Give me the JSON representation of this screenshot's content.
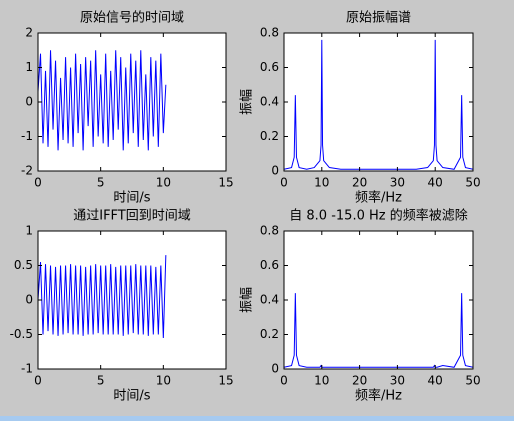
{
  "chart_data": [
    {
      "type": "line",
      "title": "原始信号的时间域",
      "xlabel": "时间/s",
      "x": [
        0,
        0.2,
        0.4,
        0.6,
        0.8,
        1,
        1.2,
        1.4,
        1.6,
        1.8,
        2,
        2.2,
        2.4,
        2.6,
        2.8,
        3,
        3.2,
        3.4,
        3.6,
        3.8,
        4,
        4.2,
        4.4,
        4.6,
        4.8,
        5,
        5.2,
        5.4,
        5.6,
        5.8,
        6,
        6.2,
        6.4,
        6.6,
        6.8,
        7,
        7.2,
        7.4,
        7.6,
        7.8,
        8,
        8.2,
        8.4,
        8.6,
        8.8,
        9,
        9.2,
        9.4,
        9.6,
        9.8,
        10,
        10.2
      ],
      "series": [
        {
          "color": "#0000ff",
          "values": [
            0.3,
            1.4,
            -1.2,
            0.9,
            -1.3,
            1.5,
            -0.8,
            1.2,
            -1.4,
            0.7,
            -1.1,
            1.3,
            -1.2,
            1.0,
            -1.3,
            1.4,
            -0.9,
            1.1,
            -1.4,
            1.3,
            -0.7,
            1.2,
            -1.3,
            1.5,
            -1.0,
            0.8,
            -1.2,
            1.4,
            -1.3,
            0.9,
            -1.1,
            1.5,
            -0.8,
            1.3,
            -1.4,
            1.0,
            -1.2,
            1.4,
            -0.9,
            1.2,
            -1.3,
            1.5,
            -1.1,
            0.8,
            -1.4,
            1.3,
            -1.0,
            1.2,
            -1.3,
            1.4,
            -0.9,
            0.5
          ]
        }
      ],
      "xlim": [
        0,
        15
      ],
      "ylim": [
        -2,
        2
      ],
      "xticks": [
        0,
        5,
        10,
        15
      ],
      "yticks": [
        -2,
        -1,
        0,
        1,
        2
      ]
    },
    {
      "type": "line",
      "title": "原始振幅谱",
      "xlabel": "频率/Hz",
      "ylabel": "振幅",
      "x": [
        0,
        2,
        2.7,
        3,
        3.3,
        4,
        6,
        8,
        9.5,
        9.8,
        10,
        10.2,
        10.5,
        12,
        15,
        20,
        25,
        30,
        35,
        38,
        39.5,
        39.8,
        40,
        40.2,
        40.5,
        42,
        45,
        46.7,
        47,
        47.3,
        48,
        50
      ],
      "series": [
        {
          "color": "#0000ff",
          "values": [
            0.01,
            0.02,
            0.08,
            0.44,
            0.08,
            0.02,
            0.01,
            0.02,
            0.06,
            0.15,
            0.76,
            0.15,
            0.06,
            0.02,
            0.01,
            0.01,
            0.01,
            0.01,
            0.01,
            0.02,
            0.06,
            0.15,
            0.76,
            0.15,
            0.06,
            0.02,
            0.01,
            0.08,
            0.44,
            0.08,
            0.02,
            0.01
          ]
        }
      ],
      "xlim": [
        0,
        50
      ],
      "ylim": [
        0,
        0.8
      ],
      "xticks": [
        0,
        10,
        20,
        30,
        40,
        50
      ],
      "yticks": [
        0,
        0.2,
        0.4,
        0.6,
        0.8
      ]
    },
    {
      "type": "line",
      "title": "通过IFFT回到时间域",
      "xlabel": "时间/s",
      "x": [
        0,
        0.2,
        0.4,
        0.6,
        0.8,
        1,
        1.2,
        1.4,
        1.6,
        1.8,
        2,
        2.2,
        2.4,
        2.6,
        2.8,
        3,
        3.2,
        3.4,
        3.6,
        3.8,
        4,
        4.2,
        4.4,
        4.6,
        4.8,
        5,
        5.2,
        5.4,
        5.6,
        5.8,
        6,
        6.2,
        6.4,
        6.6,
        6.8,
        7,
        7.2,
        7.4,
        7.6,
        7.8,
        8,
        8.2,
        8.4,
        8.6,
        8.8,
        9,
        9.2,
        9.4,
        9.6,
        9.8,
        10,
        10.2
      ],
      "series": [
        {
          "color": "#0000ff",
          "values": [
            0,
            0.55,
            -0.5,
            0.52,
            -0.45,
            0.5,
            -0.5,
            0.48,
            -0.52,
            0.5,
            -0.5,
            0.5,
            -0.48,
            0.52,
            -0.5,
            0.5,
            -0.5,
            0.5,
            -0.52,
            0.48,
            -0.5,
            0.5,
            -0.5,
            0.52,
            -0.48,
            0.5,
            -0.5,
            0.5,
            -0.5,
            0.52,
            -0.5,
            0.48,
            -0.5,
            0.5,
            -0.52,
            0.5,
            -0.5,
            0.5,
            -0.48,
            0.52,
            -0.5,
            0.5,
            -0.5,
            0.5,
            -0.52,
            0.5,
            -0.5,
            0.48,
            -0.5,
            0.5,
            -0.55,
            0.65
          ]
        }
      ],
      "xlim": [
        0,
        15
      ],
      "ylim": [
        -1,
        1
      ],
      "xticks": [
        0,
        5,
        10,
        15
      ],
      "yticks": [
        -1,
        -0.5,
        0,
        0.5,
        1
      ]
    },
    {
      "type": "line",
      "title": "自  8.0 -15.0 Hz 的频率被滤除",
      "xlabel": "频率/Hz",
      "ylabel": "振幅",
      "x": [
        0,
        2,
        2.7,
        3,
        3.3,
        4,
        6,
        8,
        9.5,
        9.8,
        10,
        10.2,
        10.5,
        12,
        15,
        20,
        25,
        30,
        35,
        38,
        39.5,
        39.8,
        40,
        40.2,
        40.5,
        42,
        45,
        46.7,
        47,
        47.3,
        48,
        50
      ],
      "series": [
        {
          "color": "#0000ff",
          "values": [
            0.01,
            0.02,
            0.08,
            0.44,
            0.08,
            0.02,
            0.01,
            0.01,
            0.01,
            0.02,
            0.01,
            0.01,
            0.01,
            0.01,
            0.01,
            0.01,
            0.01,
            0.01,
            0.01,
            0.01,
            0.01,
            0.02,
            0.01,
            0.01,
            0.01,
            0.02,
            0.01,
            0.08,
            0.44,
            0.08,
            0.02,
            0.01
          ]
        }
      ],
      "xlim": [
        0,
        50
      ],
      "ylim": [
        0,
        0.8
      ],
      "xticks": [
        0,
        10,
        20,
        30,
        40,
        50
      ],
      "yticks": [
        0,
        0.2,
        0.4,
        0.6,
        0.8
      ]
    }
  ]
}
